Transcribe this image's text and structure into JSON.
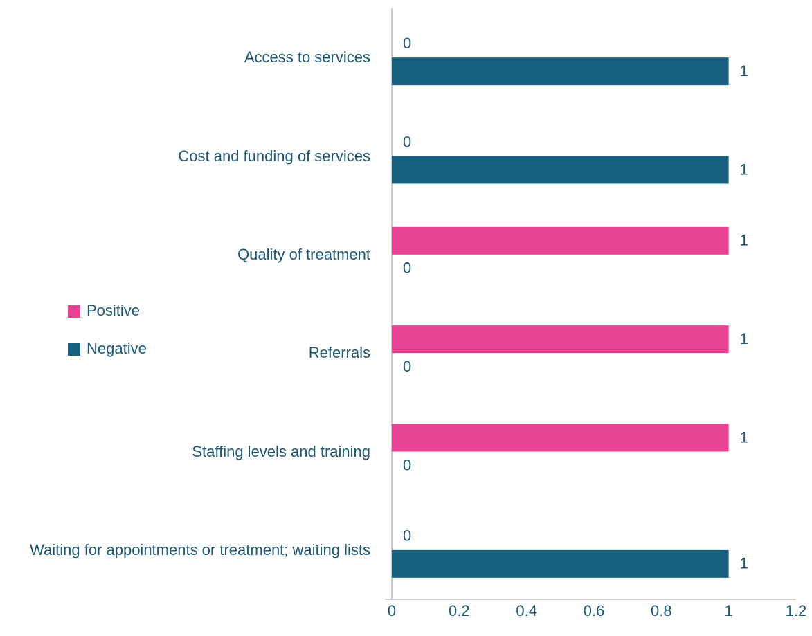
{
  "chart_data": {
    "type": "bar",
    "orientation": "horizontal",
    "categories": [
      "Access to services",
      "Cost and funding of services",
      "Quality of treatment",
      "Referrals",
      "Staffing levels and training",
      "Waiting for appointments or treatment; waiting lists"
    ],
    "series": [
      {
        "name": "Positive",
        "color": "#e84393",
        "values": [
          0,
          0,
          1,
          1,
          1,
          0
        ]
      },
      {
        "name": "Negative",
        "color": "#17607f",
        "values": [
          1,
          1,
          0,
          0,
          0,
          1
        ]
      }
    ],
    "xlim": [
      0,
      1.2
    ],
    "xticks": [
      0,
      0.2,
      0.4,
      0.6,
      0.8,
      1,
      1.2
    ],
    "grid": false,
    "legend": "left"
  }
}
